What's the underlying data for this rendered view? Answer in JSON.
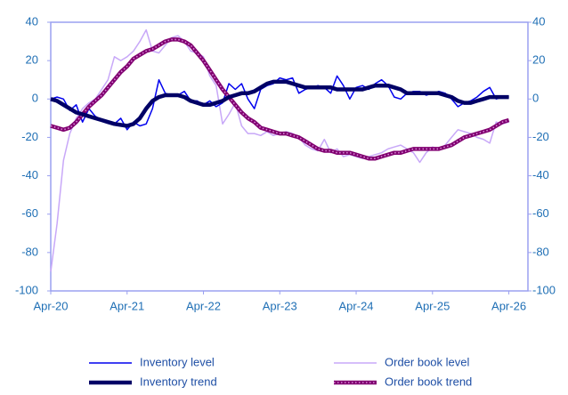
{
  "chart_data": {
    "type": "line",
    "categories": [
      "Apr-20",
      null,
      null,
      null,
      null,
      null,
      null,
      null,
      null,
      null,
      null,
      null,
      "Apr-21",
      null,
      null,
      null,
      null,
      null,
      null,
      null,
      null,
      null,
      null,
      null,
      "Apr-22",
      null,
      null,
      null,
      null,
      null,
      null,
      null,
      null,
      null,
      null,
      null,
      "Apr-23",
      null,
      null,
      null,
      null,
      null,
      null,
      null,
      null,
      null,
      null,
      null,
      "Apr-24",
      null,
      null,
      null,
      null,
      null,
      null,
      null,
      null,
      null,
      null,
      null,
      "Apr-25",
      null,
      null,
      null,
      null,
      null,
      null,
      null,
      null,
      null,
      null,
      null,
      "Apr-26",
      null,
      null,
      null
    ],
    "ylim": [
      -100,
      40
    ],
    "yticks": [
      -100,
      -80,
      -60,
      -40,
      -20,
      0,
      20,
      40
    ],
    "y2lim": [
      -100,
      40
    ],
    "y2ticks": [
      -100,
      -80,
      -60,
      -40,
      -20,
      0,
      20,
      40
    ],
    "series": [
      {
        "name": "Inventory level",
        "color": "#0000ee",
        "values": [
          0,
          1,
          0,
          -6,
          -3,
          -12,
          -5,
          -9,
          -11,
          -12,
          -13,
          -10,
          -16,
          -12,
          -14,
          -13,
          -5,
          10,
          3,
          2,
          2,
          4,
          -1,
          -1,
          -3,
          -1,
          -4,
          -2,
          8,
          5,
          8,
          0,
          -5,
          5,
          7,
          8,
          11,
          10,
          11,
          3,
          5,
          6,
          7,
          6,
          3,
          12,
          7,
          0,
          6,
          7,
          5,
          8,
          10,
          7,
          1,
          0,
          3,
          4,
          4,
          2,
          3,
          4,
          3,
          0,
          -4,
          -2,
          -1,
          1,
          4,
          6,
          0,
          1,
          1,
          null,
          null,
          null
        ]
      },
      {
        "name": "Order book level",
        "color": "#c8a8f8",
        "values": [
          -90,
          -65,
          -32,
          -18,
          -10,
          -5,
          -2,
          0,
          5,
          10,
          22,
          20,
          22,
          25,
          30,
          36,
          25,
          24,
          28,
          32,
          33,
          30,
          25,
          24,
          22,
          12,
          7,
          -13,
          -8,
          -2,
          -14,
          -18,
          -18,
          -19,
          -17,
          -19,
          -18,
          -17,
          -18,
          -20,
          -24,
          -26,
          -27,
          -21,
          -28,
          -26,
          -30,
          -29,
          -30,
          -31,
          -30,
          -29,
          -28,
          -26,
          -25,
          -24,
          -26,
          -28,
          -33,
          -28,
          -25,
          -26,
          -24,
          -20,
          -16,
          -17,
          -18,
          -20,
          -21,
          -23,
          -12,
          -13,
          -12,
          null,
          null,
          null
        ]
      },
      {
        "name": "Inventory trend",
        "color": "#000066",
        "values": [
          0,
          -1,
          -3,
          -5,
          -7,
          -8,
          -9,
          -10,
          -11,
          -12,
          -13,
          -13.5,
          -14,
          -13,
          -10,
          -5,
          -1,
          1,
          2,
          2,
          2,
          1,
          -1,
          -2,
          -3,
          -3,
          -2,
          -1,
          1,
          2,
          3,
          3,
          4,
          6,
          8,
          9,
          9,
          9,
          8,
          7,
          6,
          6,
          6,
          6,
          6,
          5,
          5,
          5,
          5,
          5,
          6,
          7,
          7,
          7,
          6,
          5,
          3,
          3,
          3,
          3,
          3,
          3,
          2,
          1,
          -1,
          -2,
          -2,
          -1,
          0,
          1,
          1,
          1,
          1,
          null,
          null,
          null
        ]
      },
      {
        "name": "Order book trend",
        "color": "#800070",
        "values": [
          -14,
          -15,
          -16,
          -15,
          -12,
          -8,
          -4,
          -1,
          2,
          6,
          10,
          14,
          17,
          21,
          23,
          25,
          26,
          28,
          30,
          31,
          31,
          30,
          28,
          24,
          20,
          15,
          10,
          5,
          1,
          -3,
          -7,
          -10,
          -12,
          -15,
          -16,
          -17,
          -18,
          -18,
          -19,
          -20,
          -22,
          -24,
          -26,
          -27,
          -27,
          -28,
          -28,
          -28,
          -29,
          -30,
          -31,
          -31,
          -30,
          -29,
          -28,
          -28,
          -27,
          -26,
          -26,
          -26,
          -26,
          -26,
          -25,
          -24,
          -22,
          -20,
          -19,
          -18,
          -17,
          -16,
          -14,
          -12,
          -11,
          null,
          null,
          null
        ]
      }
    ]
  }
}
